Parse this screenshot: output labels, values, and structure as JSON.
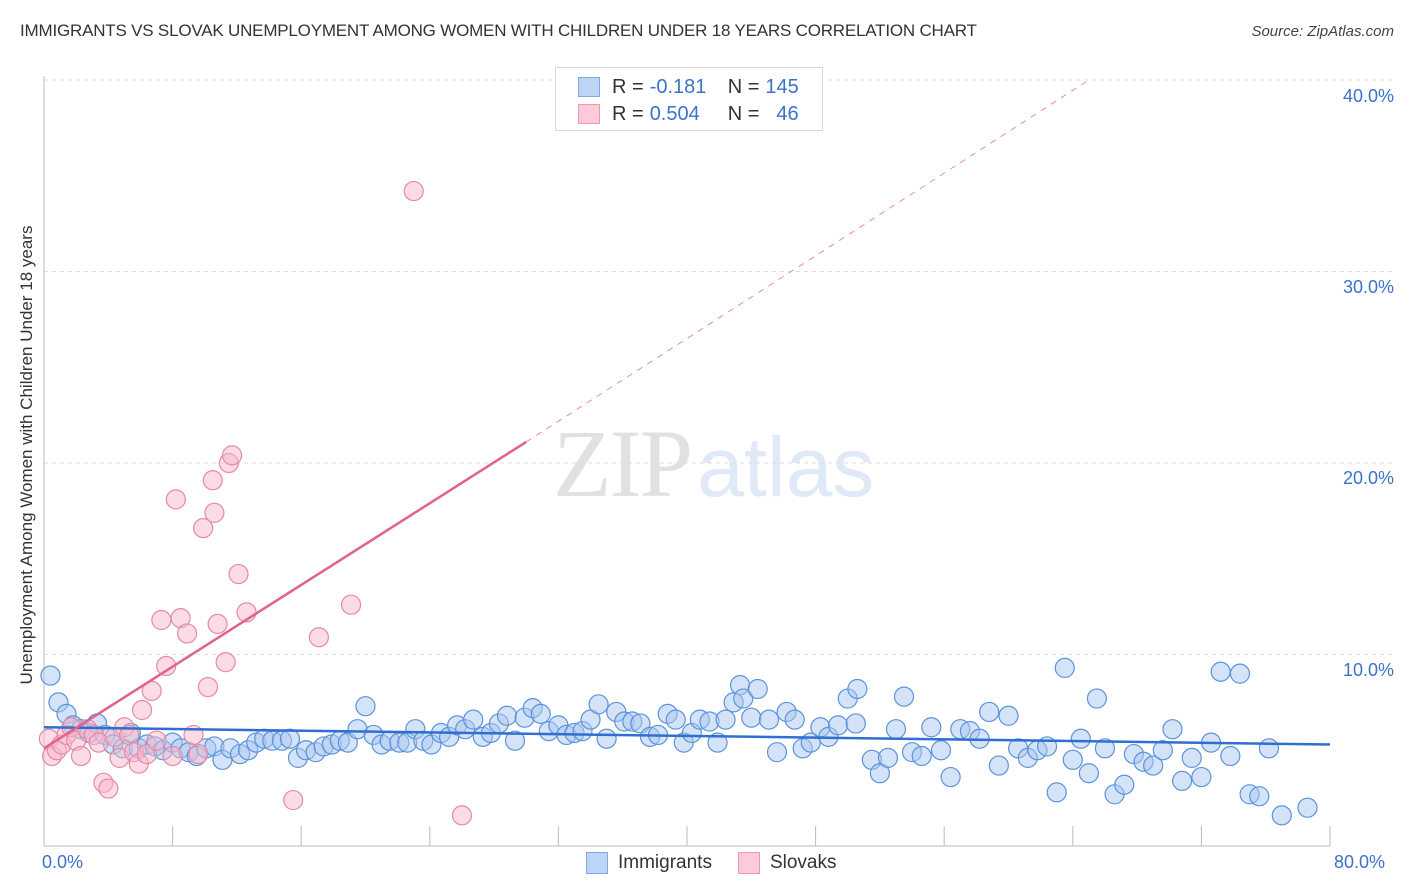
{
  "header": {
    "title": "IMMIGRANTS VS SLOVAK UNEMPLOYMENT AMONG WOMEN WITH CHILDREN UNDER 18 YEARS CORRELATION CHART",
    "source": "Source: ZipAtlas.com"
  },
  "legend_top": {
    "rows": [
      {
        "r_label": "R = ",
        "r_value": "-0.181",
        "n_label": "N = ",
        "n_value": "145",
        "color": "#a9c8f0"
      },
      {
        "r_label": "R = ",
        "r_value": "0.504",
        "n_label": "N = ",
        "n_value": "46",
        "color": "#f7b8cb"
      }
    ]
  },
  "legend_bottom": {
    "items": [
      {
        "label": "Immigrants",
        "color": "#a9c8f0"
      },
      {
        "label": "Slovaks",
        "color": "#f7b8cb"
      }
    ]
  },
  "axes": {
    "y_label": "Unemployment Among Women with Children Under 18 years",
    "y_ticks": [
      "40.0%",
      "30.0%",
      "20.0%",
      "10.0%"
    ],
    "x_tick_left": "0.0%",
    "x_tick_right": "80.0%"
  },
  "watermark": {
    "zip": "ZIP",
    "atlas": "atlas"
  },
  "chart_data": {
    "type": "scatter",
    "title": "IMMIGRANTS VS SLOVAK UNEMPLOYMENT AMONG WOMEN WITH CHILDREN UNDER 18 YEARS CORRELATION CHART",
    "xlabel": "",
    "ylabel": "Unemployment Among Women with Children Under 18 years",
    "xlim": [
      0,
      80
    ],
    "ylim": [
      0,
      40
    ],
    "x_ticks": [
      "0.0%",
      "80.0%"
    ],
    "y_ticks": [
      "10.0%",
      "20.0%",
      "30.0%",
      "40.0%"
    ],
    "grid": true,
    "legend_position": "bottom",
    "series": [
      {
        "name": "Immigrants",
        "color": "#a9c8f0",
        "stroke": "#5b93dc",
        "R": -0.181,
        "N": 145,
        "trend": {
          "x0": 0,
          "y0": 6.2,
          "x1": 80,
          "y1": 5.3
        },
        "points": [
          [
            0.4,
            8.9
          ],
          [
            0.9,
            7.5
          ],
          [
            1.4,
            6.9
          ],
          [
            1.8,
            6.3
          ],
          [
            2.3,
            6.1
          ],
          [
            2.8,
            5.9
          ],
          [
            3.3,
            6.4
          ],
          [
            3.8,
            5.8
          ],
          [
            4.3,
            5.3
          ],
          [
            4.9,
            5.1
          ],
          [
            5.4,
            5.9
          ],
          [
            5.9,
            5.1
          ],
          [
            6.4,
            5.3
          ],
          [
            6.9,
            5.2
          ],
          [
            7.4,
            5.0
          ],
          [
            8.0,
            5.4
          ],
          [
            8.5,
            5.1
          ],
          [
            9.0,
            4.9
          ],
          [
            9.5,
            4.7
          ],
          [
            10.1,
            5.1
          ],
          [
            10.6,
            5.2
          ],
          [
            11.1,
            4.5
          ],
          [
            11.6,
            5.1
          ],
          [
            12.2,
            4.8
          ],
          [
            12.7,
            5.0
          ],
          [
            13.2,
            5.4
          ],
          [
            13.7,
            5.6
          ],
          [
            14.2,
            5.5
          ],
          [
            14.8,
            5.5
          ],
          [
            15.3,
            5.6
          ],
          [
            15.8,
            4.6
          ],
          [
            16.3,
            5.0
          ],
          [
            16.9,
            4.9
          ],
          [
            17.4,
            5.2
          ],
          [
            17.9,
            5.3
          ],
          [
            18.4,
            5.5
          ],
          [
            18.9,
            5.4
          ],
          [
            19.5,
            6.1
          ],
          [
            20.0,
            7.3
          ],
          [
            20.5,
            5.8
          ],
          [
            21.0,
            5.3
          ],
          [
            21.5,
            5.5
          ],
          [
            22.1,
            5.4
          ],
          [
            22.6,
            5.4
          ],
          [
            23.1,
            6.1
          ],
          [
            23.6,
            5.5
          ],
          [
            24.1,
            5.3
          ],
          [
            24.7,
            5.9
          ],
          [
            25.2,
            5.7
          ],
          [
            25.7,
            6.3
          ],
          [
            26.2,
            6.1
          ],
          [
            26.7,
            6.6
          ],
          [
            27.3,
            5.7
          ],
          [
            27.8,
            5.9
          ],
          [
            28.3,
            6.4
          ],
          [
            28.8,
            6.8
          ],
          [
            29.3,
            5.5
          ],
          [
            29.9,
            6.7
          ],
          [
            30.4,
            7.2
          ],
          [
            30.9,
            6.9
          ],
          [
            31.4,
            6.0
          ],
          [
            32.0,
            6.3
          ],
          [
            32.5,
            5.8
          ],
          [
            33.0,
            5.9
          ],
          [
            33.5,
            6.0
          ],
          [
            34.0,
            6.6
          ],
          [
            34.5,
            7.4
          ],
          [
            35.0,
            5.6
          ],
          [
            35.6,
            7.0
          ],
          [
            36.1,
            6.5
          ],
          [
            36.6,
            6.5
          ],
          [
            37.1,
            6.4
          ],
          [
            37.7,
            5.7
          ],
          [
            38.2,
            5.8
          ],
          [
            38.8,
            6.9
          ],
          [
            39.3,
            6.6
          ],
          [
            39.8,
            5.4
          ],
          [
            40.3,
            5.9
          ],
          [
            40.8,
            6.6
          ],
          [
            41.4,
            6.5
          ],
          [
            41.9,
            5.4
          ],
          [
            42.4,
            6.6
          ],
          [
            42.9,
            7.5
          ],
          [
            43.3,
            8.4
          ],
          [
            43.5,
            7.7
          ],
          [
            44.0,
            6.7
          ],
          [
            44.4,
            8.2
          ],
          [
            45.1,
            6.6
          ],
          [
            45.6,
            4.9
          ],
          [
            46.2,
            7.0
          ],
          [
            46.7,
            6.6
          ],
          [
            47.2,
            5.1
          ],
          [
            47.7,
            5.4
          ],
          [
            48.3,
            6.2
          ],
          [
            48.8,
            5.7
          ],
          [
            49.4,
            6.3
          ],
          [
            50.0,
            7.7
          ],
          [
            50.5,
            6.4
          ],
          [
            50.6,
            8.2
          ],
          [
            51.5,
            4.5
          ],
          [
            52.0,
            3.8
          ],
          [
            52.5,
            4.6
          ],
          [
            53.0,
            6.1
          ],
          [
            53.5,
            7.8
          ],
          [
            54.0,
            4.9
          ],
          [
            54.6,
            4.7
          ],
          [
            55.2,
            6.2
          ],
          [
            55.8,
            5.0
          ],
          [
            56.4,
            3.6
          ],
          [
            57.0,
            6.1
          ],
          [
            57.6,
            6.0
          ],
          [
            58.2,
            5.6
          ],
          [
            58.8,
            7.0
          ],
          [
            59.4,
            4.2
          ],
          [
            60.0,
            6.8
          ],
          [
            60.6,
            5.1
          ],
          [
            61.2,
            4.6
          ],
          [
            61.8,
            5.0
          ],
          [
            62.4,
            5.2
          ],
          [
            63.0,
            2.8
          ],
          [
            63.5,
            9.3
          ],
          [
            64.0,
            4.5
          ],
          [
            64.5,
            5.6
          ],
          [
            65.0,
            3.8
          ],
          [
            65.5,
            7.7
          ],
          [
            66.0,
            5.1
          ],
          [
            66.6,
            2.7
          ],
          [
            67.2,
            3.2
          ],
          [
            67.8,
            4.8
          ],
          [
            68.4,
            4.4
          ],
          [
            69.0,
            4.2
          ],
          [
            69.6,
            5.0
          ],
          [
            70.2,
            6.1
          ],
          [
            70.8,
            3.4
          ],
          [
            71.4,
            4.6
          ],
          [
            72.0,
            3.6
          ],
          [
            72.6,
            5.4
          ],
          [
            73.2,
            9.1
          ],
          [
            73.8,
            4.7
          ],
          [
            74.4,
            9.0
          ],
          [
            75.0,
            2.7
          ],
          [
            75.6,
            2.6
          ],
          [
            76.2,
            5.1
          ],
          [
            77.0,
            1.6
          ],
          [
            78.6,
            2.0
          ]
        ]
      },
      {
        "name": "Slovaks",
        "color": "#f7b8cb",
        "stroke": "#e48aa6",
        "R": 0.504,
        "N": 46,
        "trend": {
          "x0": 0,
          "y0": 5.1,
          "x1": 30,
          "y1": 21.1,
          "dashed_to": {
            "x": 65,
            "y": 40
          }
        },
        "points": [
          [
            0.3,
            5.6
          ],
          [
            0.5,
            4.7
          ],
          [
            0.8,
            5.0
          ],
          [
            1.1,
            5.3
          ],
          [
            1.4,
            5.8
          ],
          [
            1.7,
            6.2
          ],
          [
            2.0,
            5.5
          ],
          [
            2.3,
            4.7
          ],
          [
            2.7,
            6.1
          ],
          [
            3.1,
            5.8
          ],
          [
            3.4,
            5.4
          ],
          [
            3.7,
            3.3
          ],
          [
            4.0,
            3.0
          ],
          [
            4.4,
            5.7
          ],
          [
            4.7,
            4.6
          ],
          [
            5.0,
            6.2
          ],
          [
            5.3,
            5.8
          ],
          [
            5.6,
            4.9
          ],
          [
            5.9,
            4.3
          ],
          [
            6.1,
            7.1
          ],
          [
            6.4,
            4.8
          ],
          [
            6.7,
            8.1
          ],
          [
            7.0,
            5.5
          ],
          [
            7.3,
            11.8
          ],
          [
            7.6,
            9.4
          ],
          [
            8.0,
            4.7
          ],
          [
            8.2,
            18.1
          ],
          [
            8.5,
            11.9
          ],
          [
            8.9,
            11.1
          ],
          [
            9.3,
            5.8
          ],
          [
            9.6,
            4.8
          ],
          [
            9.9,
            16.6
          ],
          [
            10.2,
            8.3
          ],
          [
            10.5,
            19.1
          ],
          [
            10.6,
            17.4
          ],
          [
            10.8,
            11.6
          ],
          [
            11.3,
            9.6
          ],
          [
            11.5,
            20.0
          ],
          [
            11.7,
            20.4
          ],
          [
            12.1,
            14.2
          ],
          [
            12.6,
            12.2
          ],
          [
            15.5,
            2.4
          ],
          [
            17.1,
            10.9
          ],
          [
            19.1,
            12.6
          ],
          [
            23.0,
            34.2
          ],
          [
            26.0,
            1.6
          ]
        ]
      }
    ]
  }
}
